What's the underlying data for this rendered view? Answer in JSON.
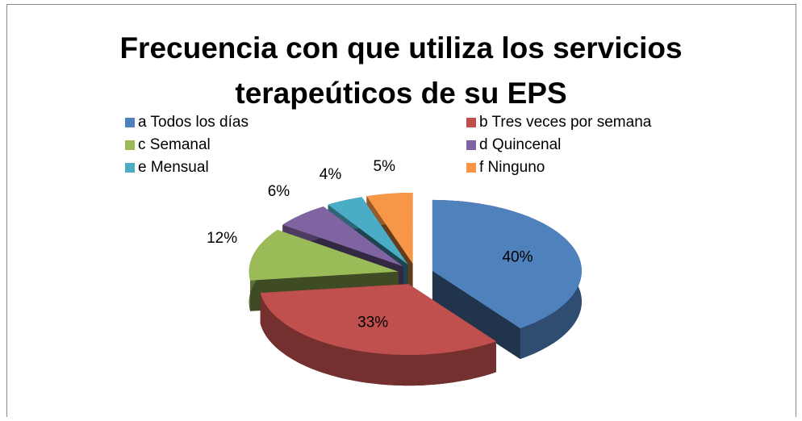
{
  "chart_data": {
    "type": "pie",
    "title": "Frecuencia con que utiliza los servicios terapeúticos de su EPS",
    "categories": [
      "a  Todos los días",
      "b  Tres veces por semana",
      "c  Semanal",
      "d Quincenal",
      "e  Mensual",
      "f  Ninguno"
    ],
    "values": [
      40,
      33,
      12,
      6,
      4,
      5
    ],
    "value_labels": [
      "40%",
      "33%",
      "12%",
      "6%",
      "4%",
      "5%"
    ],
    "colors": [
      "#4f81bd",
      "#c0504d",
      "#9bbb59",
      "#8064a2",
      "#4bacc6",
      "#f79646"
    ],
    "legend": "top"
  }
}
